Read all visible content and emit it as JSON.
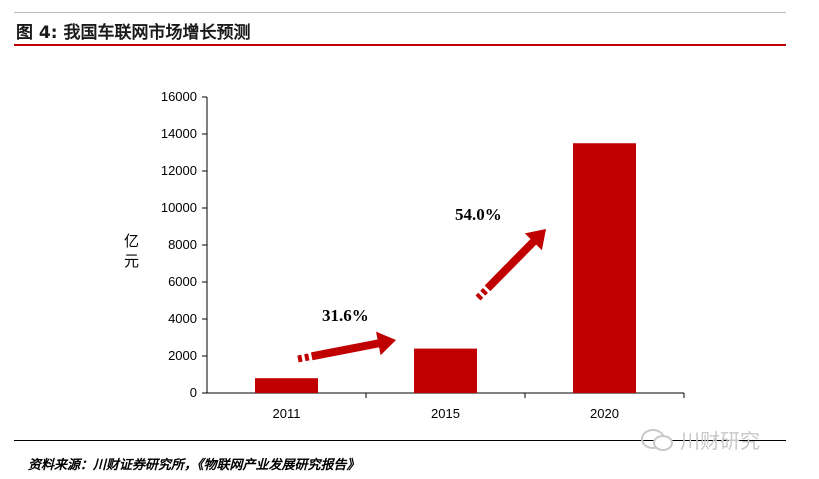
{
  "header": {
    "title": "图  4:    我国车联网市场增长预测"
  },
  "chart_data": {
    "type": "bar",
    "categories": [
      "2011",
      "2015",
      "2020"
    ],
    "values": [
      800,
      2400,
      13500
    ],
    "ylabel": "亿元",
    "ylim": [
      0,
      16000
    ],
    "yticks": [
      0,
      2000,
      4000,
      6000,
      8000,
      10000,
      12000,
      14000,
      16000
    ],
    "bar_color": "#c00000",
    "grid": false,
    "legend": "none",
    "annotations": [
      {
        "text": "31.6%"
      },
      {
        "text": "54.0%"
      }
    ]
  },
  "footer": {
    "source": "资料来源：川财证券研究所，《物联网产业发展研究报告》",
    "watermark": "川财研究"
  }
}
